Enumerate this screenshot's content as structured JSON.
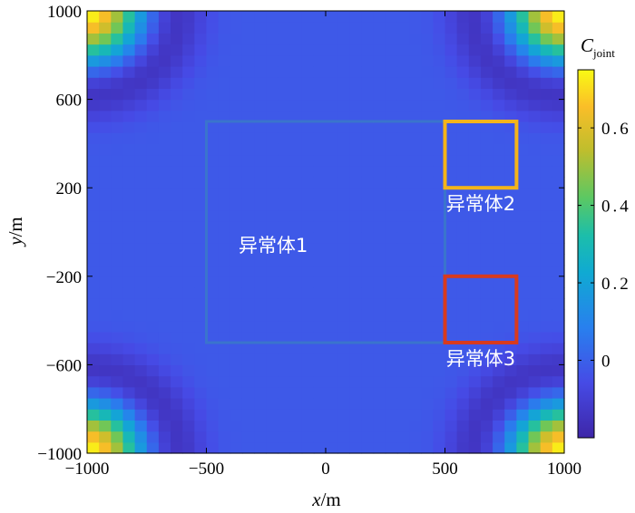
{
  "chart_data": {
    "type": "heatmap",
    "x_axis": {
      "label_var": "x",
      "label_unit": "/m",
      "range": [
        -1000,
        1000
      ],
      "ticks": [
        -1000,
        -500,
        0,
        500,
        1000
      ]
    },
    "y_axis": {
      "label_var": "y",
      "label_unit": "/m",
      "range": [
        -1000,
        1000
      ],
      "ticks": [
        -1000,
        -600,
        -200,
        200,
        600,
        1000
      ]
    },
    "x_tick_labels": [
      "−1000",
      "−500",
      "0",
      "500",
      "1000"
    ],
    "y_tick_labels": [
      "−1000",
      "−600",
      "−200",
      "200",
      "600",
      "1000"
    ],
    "grid": false,
    "colorbar": {
      "label_main": "C",
      "label_sub": "joint",
      "range": [
        -0.2,
        0.75
      ],
      "ticks": [
        0.6,
        0.4,
        0.2,
        0
      ],
      "tick_labels": [
        "0.6",
        "0.4",
        "0.2",
        "0"
      ],
      "placement": "right",
      "colormap": "parula"
    },
    "field_description_values": {
      "background": -0.02,
      "corner_peak": 0.75,
      "ring_trough": -0.15
    },
    "anomalies": [
      {
        "name": "异常体1",
        "x_range": [
          -500,
          500
        ],
        "y_range": [
          -500,
          500
        ],
        "color": "#3a79c8"
      },
      {
        "name": "异常体2",
        "x_range": [
          500,
          800
        ],
        "y_range": [
          200,
          500
        ],
        "color": "#f4b41a"
      },
      {
        "name": "异常体3",
        "x_range": [
          500,
          800
        ],
        "y_range": [
          -500,
          -200
        ],
        "color": "#d83a1e"
      }
    ]
  }
}
